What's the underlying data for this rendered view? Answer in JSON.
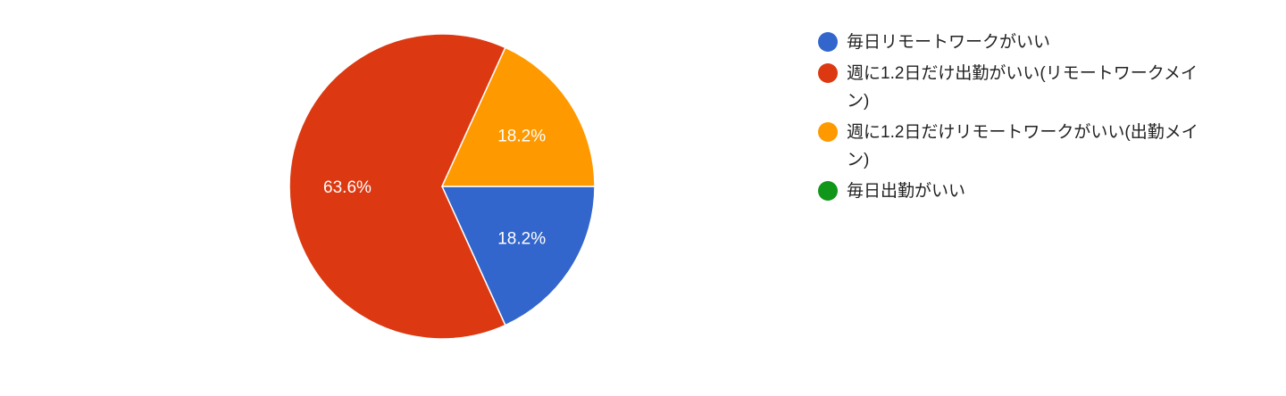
{
  "chart_data": {
    "type": "pie",
    "slices": [
      {
        "label": "毎日リモートワークがいい",
        "percent": 18.2,
        "value_label": "18.2%",
        "color": "#3366cc"
      },
      {
        "label": "週に1.2日だけ出勤がいい(リモートワークメイン)",
        "percent": 63.6,
        "value_label": "63.6%",
        "color": "#dc3912"
      },
      {
        "label": "週に1.2日だけリモートワークがいい(出勤メイン)",
        "percent": 18.2,
        "value_label": "18.2%",
        "color": "#ff9900"
      },
      {
        "label": "毎日出勤がいい",
        "percent": 0,
        "value_label": "",
        "color": "#109618"
      }
    ],
    "legend_position": "right",
    "start_angle": "3 o'clock, clockwise"
  }
}
